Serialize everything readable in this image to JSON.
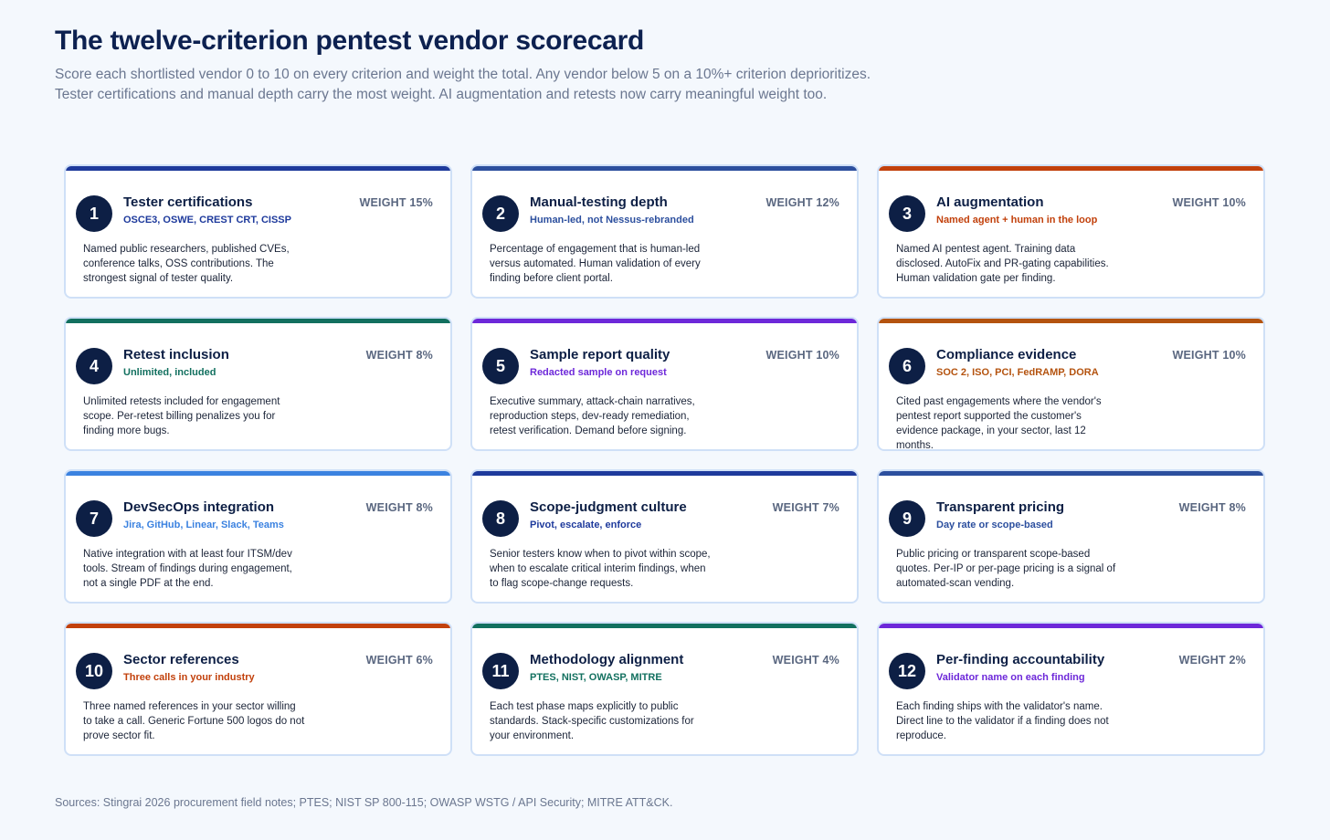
{
  "title": "The twelve-criterion pentest vendor scorecard",
  "subtitle_line1": "Score each shortlisted vendor 0 to 10 on every criterion and weight the total. Any vendor below 5 on a 10%+ criterion deprioritizes.",
  "subtitle_line2": "Tester certifications and manual depth carry the most weight. AI augmentation and retests now carry meaningful weight too.",
  "cards": [
    {
      "num": "1",
      "title": "Tester certifications",
      "weight": "WEIGHT 15%",
      "tag": "OSCE3, OSWE, CREST CRT, CISSP",
      "color": "#1e3a9c",
      "desc": "Named public researchers, published CVEs, conference talks, OSS contributions. The strongest signal of tester quality."
    },
    {
      "num": "2",
      "title": "Manual-testing depth",
      "weight": "WEIGHT 12%",
      "tag": "Human-led, not Nessus-rebranded",
      "color": "#2c4f9e",
      "desc": "Percentage of engagement that is human-led versus automated. Human validation of every finding before client portal."
    },
    {
      "num": "3",
      "title": "AI augmentation",
      "weight": "WEIGHT 10%",
      "tag": "Named agent + human in the loop",
      "color": "#c2410c",
      "desc": "Named AI pentest agent. Training data disclosed. AutoFix and PR-gating capabilities. Human validation gate per finding."
    },
    {
      "num": "4",
      "title": "Retest inclusion",
      "weight": "WEIGHT 8%",
      "tag": "Unlimited, included",
      "color": "#12705f",
      "desc": "Unlimited retests included for engagement scope. Per-retest billing penalizes you for finding more bugs."
    },
    {
      "num": "5",
      "title": "Sample report quality",
      "weight": "WEIGHT 10%",
      "tag": "Redacted sample on request",
      "color": "#6d28d9",
      "desc": "Executive summary, attack-chain narratives, reproduction steps, dev-ready remediation, retest verification. Demand before signing."
    },
    {
      "num": "6",
      "title": "Compliance evidence",
      "weight": "WEIGHT 10%",
      "tag": "SOC 2, ISO, PCI, FedRAMP, DORA",
      "color": "#b4530f",
      "desc": "Cited past engagements where the vendor's pentest report supported the customer's evidence package, in your sector, last 12 months."
    },
    {
      "num": "7",
      "title": "DevSecOps integration",
      "weight": "WEIGHT 8%",
      "tag": "Jira, GitHub, Linear, Slack, Teams",
      "color": "#3b82e0",
      "desc": "Native integration with at least four ITSM/dev tools. Stream of findings during engagement, not a single PDF at the end."
    },
    {
      "num": "8",
      "title": "Scope-judgment culture",
      "weight": "WEIGHT 7%",
      "tag": "Pivot, escalate, enforce",
      "color": "#1e3a9c",
      "desc": "Senior testers know when to pivot within scope, when to escalate critical interim findings, when to flag scope-change requests."
    },
    {
      "num": "9",
      "title": "Transparent pricing",
      "weight": "WEIGHT 8%",
      "tag": "Day rate or scope-based",
      "color": "#2c4f9e",
      "desc": "Public pricing or transparent scope-based quotes. Per-IP or per-page pricing is a signal of automated-scan vending."
    },
    {
      "num": "10",
      "title": "Sector references",
      "weight": "WEIGHT 6%",
      "tag": "Three calls in your industry",
      "color": "#c2410c",
      "desc": "Three named references in your sector willing to take a call. Generic Fortune 500 logos do not prove sector fit."
    },
    {
      "num": "11",
      "title": "Methodology alignment",
      "weight": "WEIGHT 4%",
      "tag": "PTES, NIST, OWASP, MITRE",
      "color": "#12705f",
      "desc": "Each test phase maps explicitly to public standards. Stack-specific customizations for your environment."
    },
    {
      "num": "12",
      "title": "Per-finding accountability",
      "weight": "WEIGHT 2%",
      "tag": "Validator name on each finding",
      "color": "#6d28d9",
      "desc": "Each finding ships with the validator's name. Direct line to the validator if a finding does not reproduce."
    }
  ],
  "sources": "Sources: Stingrai 2026 procurement field notes; PTES; NIST SP 800-115; OWASP WSTG / API Security; MITRE ATT&CK."
}
